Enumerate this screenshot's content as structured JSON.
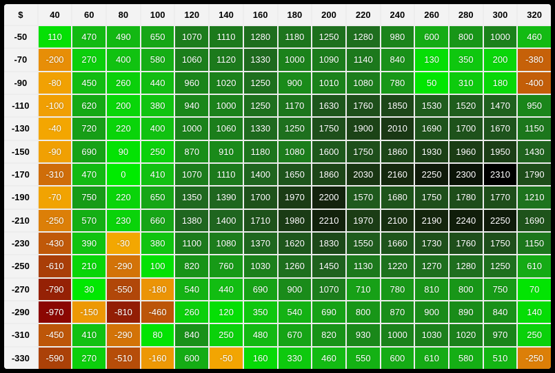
{
  "chart_data": {
    "type": "heatmap",
    "corner_label": "$",
    "x_labels": [
      "40",
      "60",
      "80",
      "100",
      "120",
      "140",
      "160",
      "180",
      "200",
      "220",
      "240",
      "260",
      "280",
      "300",
      "320"
    ],
    "y_labels": [
      "-50",
      "-70",
      "-90",
      "-110",
      "-130",
      "-150",
      "-170",
      "-190",
      "-210",
      "-230",
      "-250",
      "-270",
      "-290",
      "-310",
      "-330"
    ],
    "values": [
      [
        110,
        470,
        490,
        650,
        1070,
        1110,
        1280,
        1180,
        1250,
        1280,
        980,
        600,
        800,
        1000,
        460
      ],
      [
        -200,
        270,
        400,
        580,
        1060,
        1120,
        1330,
        1000,
        1090,
        1140,
        840,
        130,
        350,
        200,
        -380
      ],
      [
        -80,
        450,
        260,
        440,
        960,
        1020,
        1250,
        900,
        1010,
        1080,
        780,
        50,
        310,
        180,
        -400
      ],
      [
        -100,
        620,
        200,
        380,
        940,
        1000,
        1250,
        1170,
        1630,
        1760,
        1850,
        1530,
        1520,
        1470,
        950
      ],
      [
        -40,
        720,
        220,
        400,
        1000,
        1060,
        1330,
        1250,
        1750,
        1900,
        2010,
        1690,
        1700,
        1670,
        1150
      ],
      [
        -90,
        690,
        90,
        250,
        870,
        910,
        1180,
        1080,
        1600,
        1750,
        1860,
        1930,
        1960,
        1950,
        1430
      ],
      [
        -310,
        470,
        0,
        410,
        1070,
        1110,
        1400,
        1650,
        1860,
        2030,
        2160,
        2250,
        2300,
        2310,
        1790
      ],
      [
        -70,
        750,
        220,
        650,
        1350,
        1390,
        1700,
        1970,
        2200,
        1570,
        1680,
        1750,
        1780,
        1770,
        1210
      ],
      [
        -250,
        570,
        230,
        660,
        1380,
        1400,
        1710,
        1980,
        2210,
        1970,
        2100,
        2190,
        2240,
        2250,
        1690
      ],
      [
        -430,
        390,
        -30,
        380,
        1100,
        1080,
        1370,
        1620,
        1830,
        1550,
        1660,
        1730,
        1760,
        1750,
        1150
      ],
      [
        -610,
        210,
        -290,
        100,
        820,
        760,
        1030,
        1260,
        1450,
        1130,
        1220,
        1270,
        1280,
        1250,
        610
      ],
      [
        -790,
        30,
        -550,
        -180,
        540,
        440,
        690,
        900,
        1070,
        710,
        780,
        810,
        800,
        750,
        70
      ],
      [
        -970,
        -150,
        -810,
        -460,
        260,
        120,
        350,
        540,
        690,
        800,
        870,
        900,
        890,
        840,
        140
      ],
      [
        -450,
        410,
        -290,
        80,
        840,
        250,
        480,
        670,
        820,
        930,
        1000,
        1030,
        1020,
        970,
        250
      ],
      [
        -590,
        270,
        -510,
        -160,
        600,
        -50,
        160,
        330,
        460,
        550,
        600,
        610,
        580,
        510,
        -250
      ]
    ],
    "value_min": -970,
    "value_max": 2310,
    "layout": {
      "grid": "on",
      "legend": "none"
    },
    "colors": {
      "frame": "#000000",
      "grid_gap": "#ededed",
      "header_bg": "#f3f3f3",
      "header_text": "#000000",
      "cell_text": "#ffffff",
      "max_cell_bg": "#000000",
      "positive_stops": [
        [
          0.0,
          "#00eb00"
        ],
        [
          0.18,
          "#12c012"
        ],
        [
          0.4,
          "#1a881a"
        ],
        [
          0.6,
          "#1f661f"
        ],
        [
          0.78,
          "#1e4c1a"
        ],
        [
          0.93,
          "#172b10"
        ],
        [
          1.0,
          "#0a1206"
        ]
      ],
      "negative_stops": [
        [
          0.0,
          "#f5ab00"
        ],
        [
          0.18,
          "#ec9606"
        ],
        [
          0.33,
          "#cd6a09"
        ],
        [
          0.5,
          "#b95109"
        ],
        [
          0.66,
          "#a53a08"
        ],
        [
          0.84,
          "#921d05"
        ],
        [
          1.0,
          "#8b0702"
        ]
      ]
    }
  }
}
